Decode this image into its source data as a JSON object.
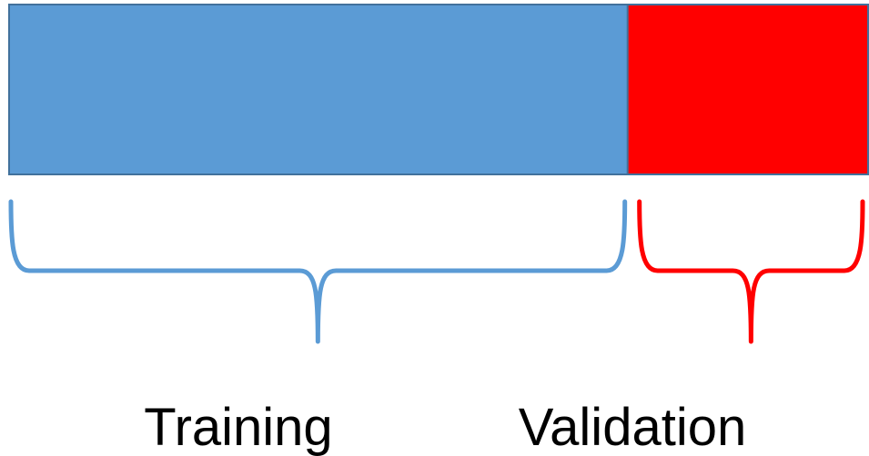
{
  "segments": [
    {
      "id": "training",
      "label": "Training",
      "fraction": 0.72,
      "fill": "#5b9bd5",
      "bracket": "#5b9bd5"
    },
    {
      "id": "validation",
      "label": "Validation",
      "fraction": 0.28,
      "fill": "#ff0000",
      "bracket": "#ff0000"
    }
  ],
  "border_color": "#41719c"
}
